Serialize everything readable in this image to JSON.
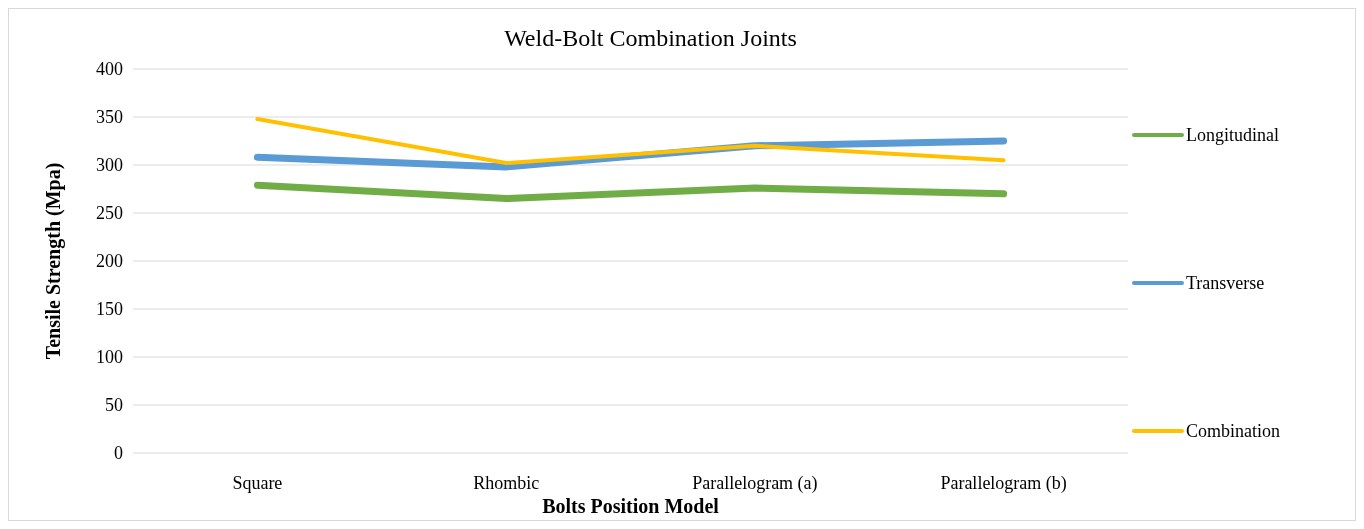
{
  "chart_data": {
    "type": "line",
    "title": "Weld-Bolt Combination Joints",
    "xlabel": "Bolts Position Model",
    "ylabel": "Tensile Strength (Mpa)",
    "categories": [
      "Square",
      "Rhombic",
      "Parallelogram (a)",
      "Parallelogram (b)"
    ],
    "series": [
      {
        "name": "Longitudinal",
        "color": "#70ad47",
        "values": [
          279,
          265,
          276,
          270
        ]
      },
      {
        "name": "Transverse",
        "color": "#5b9bd5",
        "values": [
          308,
          298,
          320,
          325
        ]
      },
      {
        "name": "Combination",
        "color": "#ffc000",
        "values": [
          348,
          302,
          320,
          305
        ]
      }
    ],
    "ylim": [
      0,
      400
    ],
    "yticks": [
      0,
      50,
      100,
      150,
      200,
      250,
      300,
      350,
      400
    ],
    "grid": "y",
    "legend": "right",
    "marker": "none",
    "line_style": "solid"
  }
}
